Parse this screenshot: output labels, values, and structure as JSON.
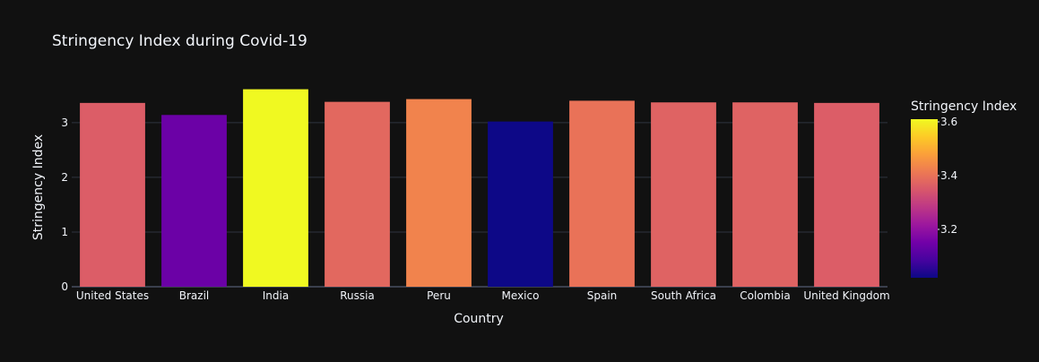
{
  "chart_data": {
    "type": "bar",
    "title": "Stringency Index during Covid-19",
    "xlabel": "Country",
    "ylabel": "Stringency Index",
    "categories": [
      "United States",
      "Brazil",
      "India",
      "Russia",
      "Peru",
      "Mexico",
      "Spain",
      "South Africa",
      "Colombia",
      "United Kingdom"
    ],
    "values": [
      3.36,
      3.14,
      3.61,
      3.38,
      3.43,
      3.02,
      3.4,
      3.37,
      3.37,
      3.36
    ],
    "ylim": [
      0,
      3.8
    ],
    "yticks": [
      0,
      1,
      2,
      3
    ],
    "grid": true,
    "legend": {
      "type": "colorbar",
      "title": "Stringency Index",
      "position": "right",
      "range": [
        3.02,
        3.61
      ],
      "ticks": [
        3.2,
        3.4,
        3.6
      ]
    },
    "colorscale": [
      "#0d0887",
      "#46039f",
      "#7201a8",
      "#9c179e",
      "#bd3786",
      "#d8576b",
      "#ed7953",
      "#fb9f3a",
      "#fdca26",
      "#f0f921"
    ],
    "colors": {
      "background": "#111111",
      "grid": "#2f3340",
      "text": "#f2f5fa"
    }
  }
}
